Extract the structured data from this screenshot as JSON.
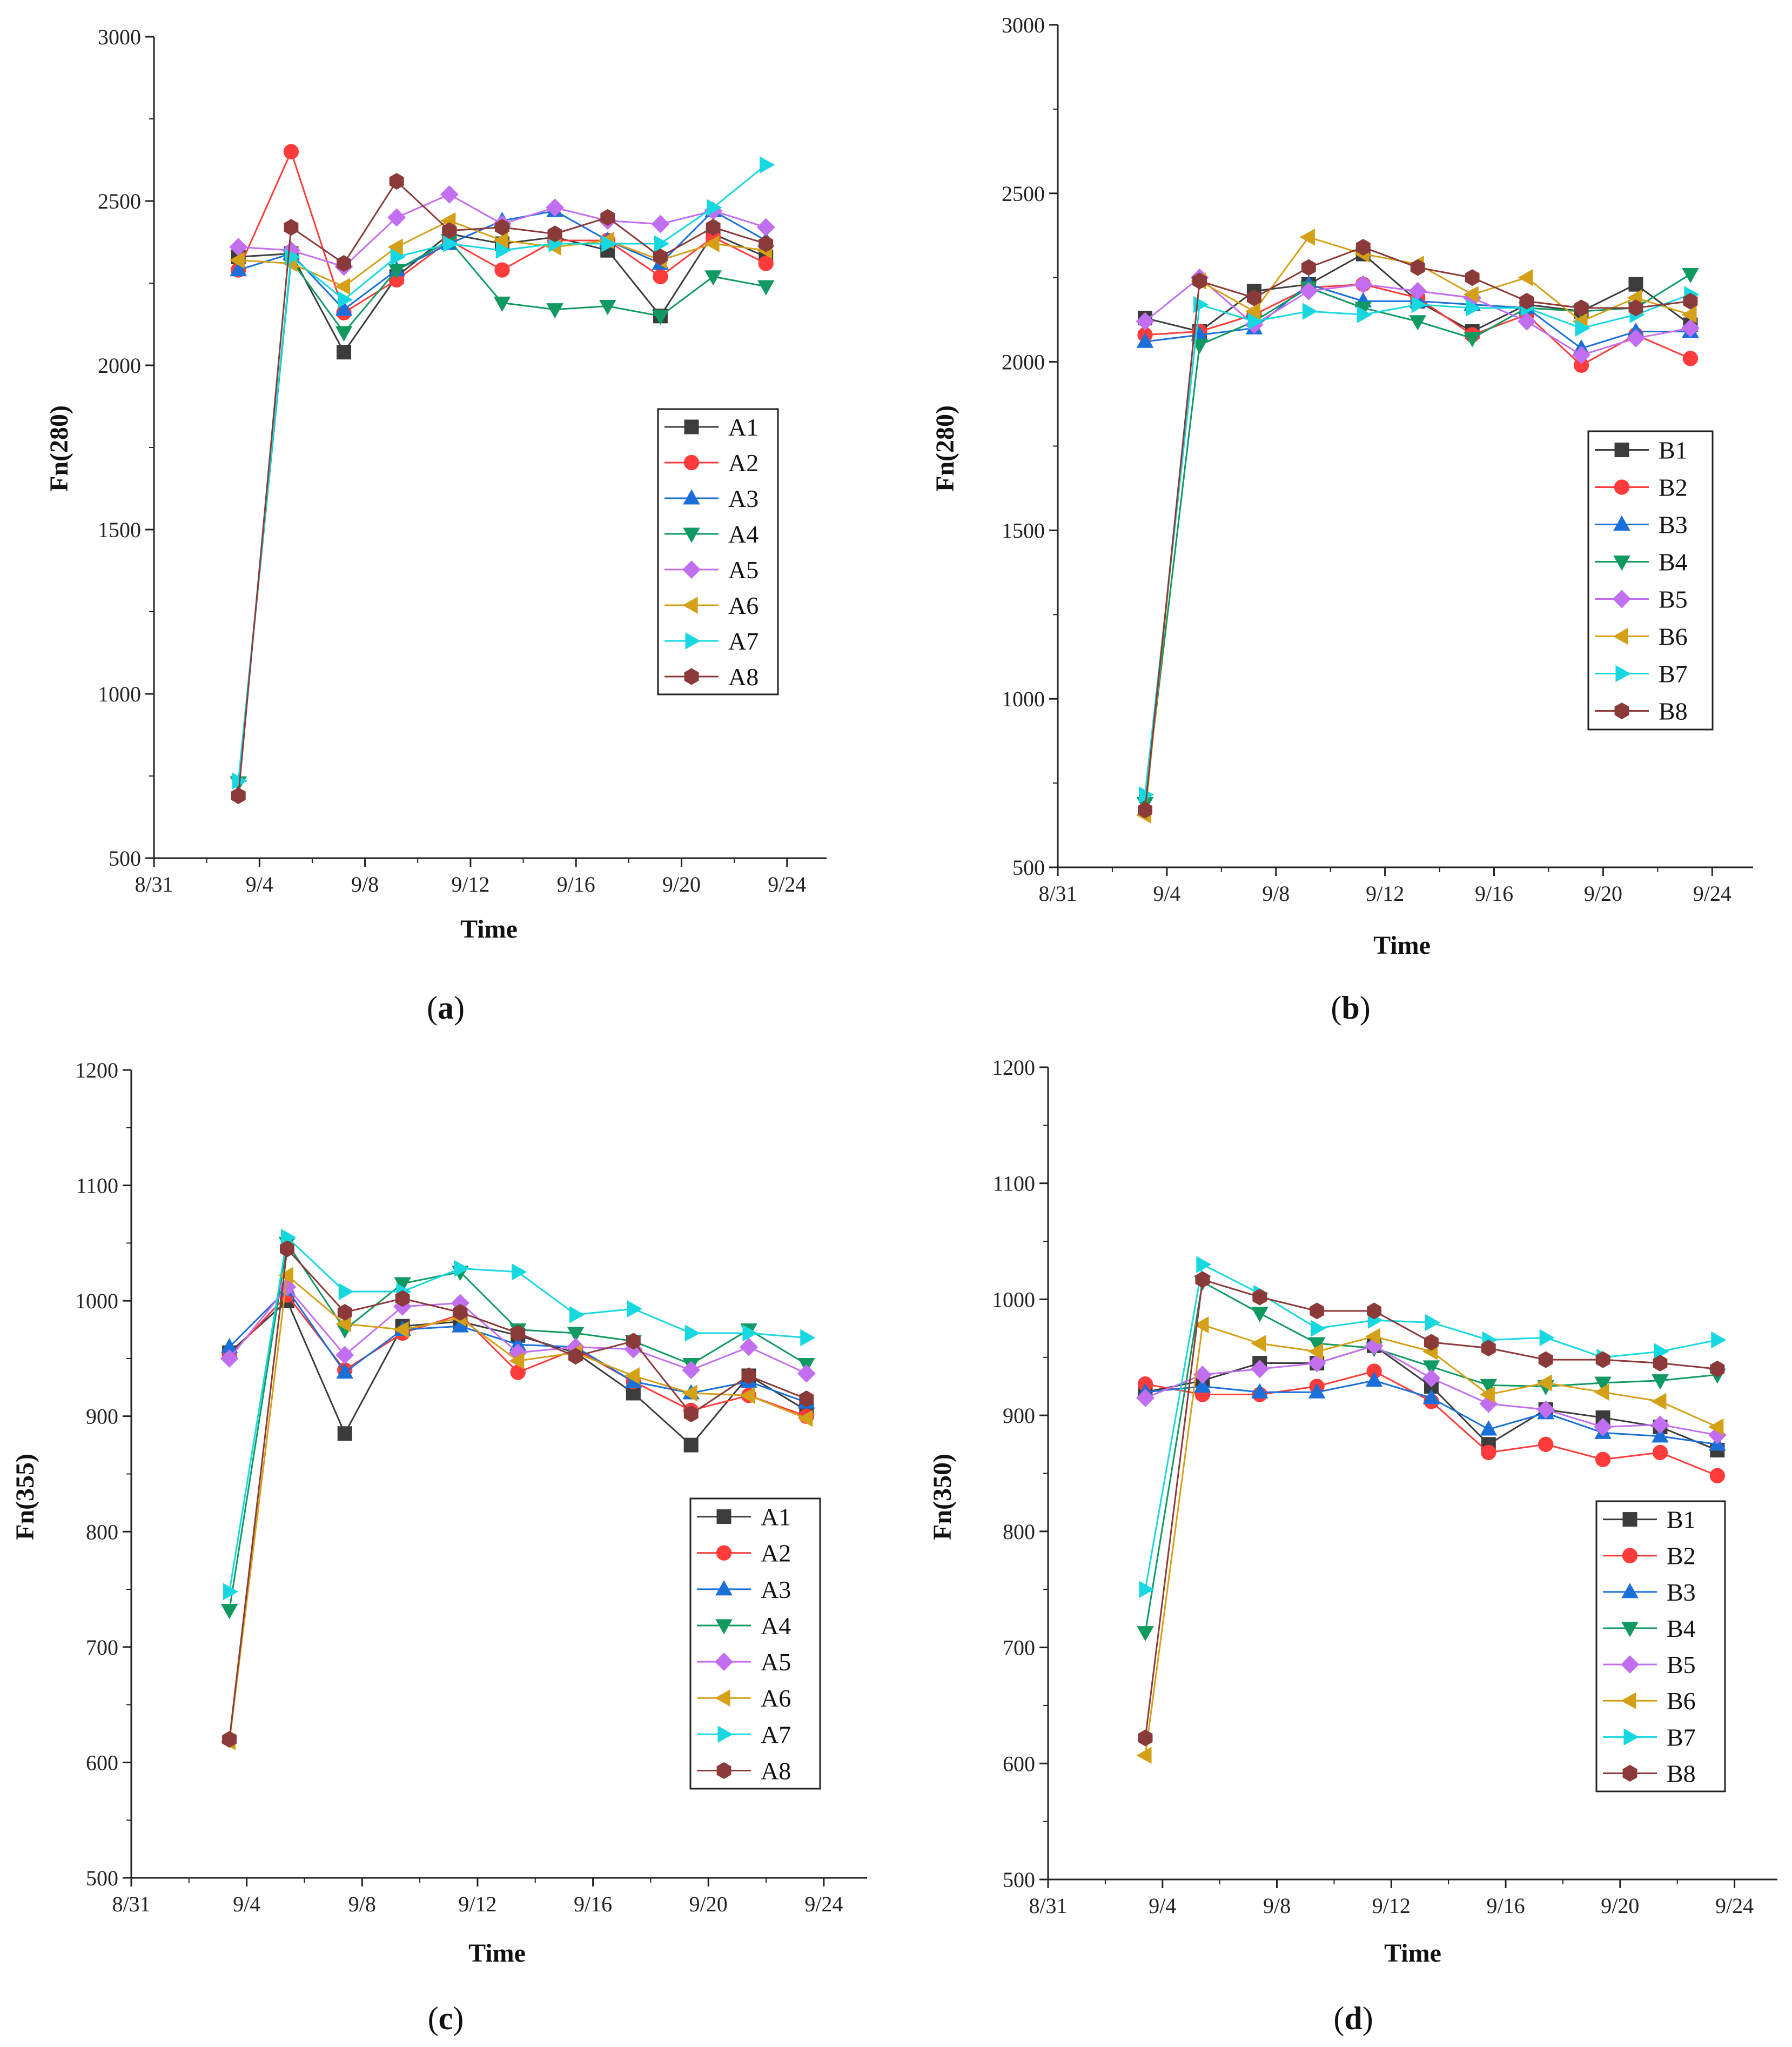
{
  "figure": {
    "panels": [
      {
        "id": "a",
        "label_letter": "a",
        "label_text": "(a)"
      },
      {
        "id": "b",
        "label_letter": "b",
        "label_text": "(b)"
      },
      {
        "id": "c",
        "label_letter": "c",
        "label_text": "(c)"
      },
      {
        "id": "d",
        "label_letter": "d",
        "label_text": "(d)"
      }
    ]
  },
  "chart_data": [
    {
      "id": "a",
      "type": "line",
      "xlabel": "Time",
      "ylabel": "Fn(280)",
      "ylim": [
        500,
        3000
      ],
      "yticks": [
        500,
        1000,
        1500,
        2000,
        2500,
        3000
      ],
      "xlim": [
        0,
        25.5
      ],
      "xtick_values": [
        0,
        4,
        8,
        12,
        16,
        20,
        24
      ],
      "xtick_labels": [
        "8/31",
        "9/4",
        "9/8",
        "9/12",
        "9/16",
        "9/20",
        "9/24"
      ],
      "x": [
        3.2,
        5.2,
        7.2,
        9.2,
        11.2,
        13.2,
        15.2,
        17.2,
        19.2,
        21.2,
        23.2
      ],
      "legend_position": "right",
      "series": [
        {
          "name": "A1",
          "color": "#3c3c3c",
          "marker": "square",
          "values": [
            2330,
            2340,
            2040,
            2270,
            2400,
            2370,
            2390,
            2350,
            2150,
            2400,
            2330
          ]
        },
        {
          "name": "A2",
          "color": "#ff3b3b",
          "marker": "circle",
          "values": [
            2290,
            2650,
            2160,
            2260,
            2380,
            2290,
            2380,
            2380,
            2270,
            2390,
            2310
          ]
        },
        {
          "name": "A3",
          "color": "#1a6fd9",
          "marker": "triangle-up",
          "values": [
            2290,
            2340,
            2170,
            2290,
            2370,
            2440,
            2470,
            2380,
            2310,
            2470,
            2380
          ]
        },
        {
          "name": "A4",
          "color": "#109a62",
          "marker": "triangle-down",
          "values": [
            730,
            2320,
            2100,
            2290,
            2380,
            2190,
            2170,
            2180,
            2150,
            2270,
            2240
          ]
        },
        {
          "name": "A5",
          "color": "#c26ef0",
          "marker": "diamond",
          "values": [
            2360,
            2350,
            2300,
            2450,
            2520,
            2430,
            2480,
            2440,
            2430,
            2470,
            2420
          ]
        },
        {
          "name": "A6",
          "color": "#d4a017",
          "marker": "triangle-left",
          "values": [
            2320,
            2310,
            2240,
            2360,
            2440,
            2380,
            2360,
            2380,
            2320,
            2370,
            2350
          ]
        },
        {
          "name": "A7",
          "color": "#17d8e0",
          "marker": "triangle-right",
          "values": [
            735,
            2330,
            2200,
            2330,
            2370,
            2350,
            2370,
            2370,
            2370,
            2480,
            2610
          ]
        },
        {
          "name": "A8",
          "color": "#8b3a3a",
          "marker": "hexagon",
          "values": [
            690,
            2420,
            2310,
            2560,
            2410,
            2420,
            2400,
            2450,
            2330,
            2420,
            2370
          ]
        }
      ]
    },
    {
      "id": "b",
      "type": "line",
      "xlabel": "Time",
      "ylabel": "Fn(280)",
      "ylim": [
        500,
        3000
      ],
      "yticks": [
        500,
        1000,
        1500,
        2000,
        2500,
        3000
      ],
      "xlim": [
        0,
        25.5
      ],
      "xtick_values": [
        0,
        4,
        8,
        12,
        16,
        20,
        24
      ],
      "xtick_labels": [
        "8/31",
        "9/4",
        "9/8",
        "9/12",
        "9/16",
        "9/20",
        "9/24"
      ],
      "x": [
        3.2,
        5.2,
        7.2,
        9.2,
        11.2,
        13.2,
        15.2,
        17.2,
        19.2,
        21.2,
        23.2
      ],
      "legend_position": "right",
      "series": [
        {
          "name": "B1",
          "color": "#3c3c3c",
          "marker": "square",
          "values": [
            2130,
            2090,
            2210,
            2230,
            2320,
            2180,
            2090,
            2170,
            2150,
            2230,
            2110
          ]
        },
        {
          "name": "B2",
          "color": "#ff3b3b",
          "marker": "circle",
          "values": [
            2080,
            2090,
            2140,
            2220,
            2230,
            2190,
            2080,
            2140,
            1990,
            2080,
            2010
          ]
        },
        {
          "name": "B3",
          "color": "#1a6fd9",
          "marker": "triangle-up",
          "values": [
            2060,
            2080,
            2100,
            2230,
            2180,
            2180,
            2170,
            2160,
            2040,
            2090,
            2090
          ]
        },
        {
          "name": "B4",
          "color": "#109a62",
          "marker": "triangle-down",
          "values": [
            690,
            2050,
            2120,
            2220,
            2160,
            2120,
            2070,
            2160,
            2150,
            2160,
            2260
          ]
        },
        {
          "name": "B5",
          "color": "#c26ef0",
          "marker": "diamond",
          "values": [
            2120,
            2250,
            2110,
            2210,
            2230,
            2210,
            2190,
            2120,
            2020,
            2070,
            2100
          ]
        },
        {
          "name": "B6",
          "color": "#d4a017",
          "marker": "triangle-left",
          "values": [
            655,
            2240,
            2150,
            2370,
            2320,
            2290,
            2200,
            2250,
            2120,
            2190,
            2140
          ]
        },
        {
          "name": "B7",
          "color": "#17d8e0",
          "marker": "triangle-right",
          "values": [
            715,
            2170,
            2120,
            2150,
            2140,
            2170,
            2160,
            2160,
            2100,
            2140,
            2200
          ]
        },
        {
          "name": "B8",
          "color": "#8b3a3a",
          "marker": "hexagon",
          "values": [
            670,
            2240,
            2190,
            2280,
            2340,
            2280,
            2250,
            2180,
            2160,
            2160,
            2180
          ]
        }
      ]
    },
    {
      "id": "c",
      "type": "line",
      "xlabel": "Time",
      "ylabel": "Fn(355)",
      "ylim": [
        500,
        1200
      ],
      "yticks": [
        500,
        600,
        700,
        800,
        900,
        1000,
        1100,
        1200
      ],
      "xlim": [
        0,
        25.5
      ],
      "xtick_values": [
        0,
        4,
        8,
        12,
        16,
        20,
        24
      ],
      "xtick_labels": [
        "8/31",
        "9/4",
        "9/8",
        "9/12",
        "9/16",
        "9/20",
        "9/24"
      ],
      "x": [
        3.4,
        5.4,
        7.4,
        9.4,
        11.4,
        13.4,
        15.4,
        17.4,
        19.4,
        21.4,
        23.4
      ],
      "legend_position": "lower-right",
      "series": [
        {
          "name": "A1",
          "color": "#3c3c3c",
          "marker": "square",
          "values": [
            955,
            1000,
            885,
            978,
            982,
            970,
            955,
            920,
            875,
            935,
            905
          ]
        },
        {
          "name": "A2",
          "color": "#ff3b3b",
          "marker": "circle",
          "values": [
            952,
            1005,
            940,
            972,
            988,
            938,
            958,
            930,
            905,
            918,
            900
          ]
        },
        {
          "name": "A3",
          "color": "#1a6fd9",
          "marker": "triangle-up",
          "values": [
            960,
            1010,
            938,
            975,
            978,
            962,
            960,
            930,
            920,
            930,
            912
          ]
        },
        {
          "name": "A4",
          "color": "#109a62",
          "marker": "triangle-down",
          "values": [
            732,
            1050,
            975,
            1015,
            1025,
            975,
            972,
            965,
            945,
            975,
            945
          ]
        },
        {
          "name": "A5",
          "color": "#c26ef0",
          "marker": "diamond",
          "values": [
            950,
            1012,
            953,
            995,
            998,
            955,
            960,
            958,
            940,
            960,
            937
          ]
        },
        {
          "name": "A6",
          "color": "#d4a017",
          "marker": "triangle-left",
          "values": [
            618,
            1022,
            980,
            975,
            985,
            948,
            955,
            935,
            920,
            918,
            898
          ]
        },
        {
          "name": "A7",
          "color": "#17d8e0",
          "marker": "triangle-right",
          "values": [
            748,
            1055,
            1008,
            1008,
            1028,
            1025,
            988,
            993,
            972,
            972,
            968
          ]
        },
        {
          "name": "A8",
          "color": "#8b3a3a",
          "marker": "hexagon",
          "values": [
            620,
            1045,
            990,
            1002,
            990,
            972,
            952,
            965,
            902,
            935,
            915
          ]
        }
      ]
    },
    {
      "id": "d",
      "type": "line",
      "xlabel": "Time",
      "ylabel": "Fn(350)",
      "ylim": [
        500,
        1200
      ],
      "yticks": [
        500,
        600,
        700,
        800,
        900,
        1000,
        1100,
        1200
      ],
      "xlim": [
        0,
        25.5
      ],
      "xtick_values": [
        0,
        4,
        8,
        12,
        16,
        20,
        24
      ],
      "xtick_labels": [
        "8/31",
        "9/4",
        "9/8",
        "9/12",
        "9/16",
        "9/20",
        "9/24"
      ],
      "x": [
        3.4,
        5.4,
        7.4,
        9.4,
        11.4,
        13.4,
        15.4,
        17.4,
        19.4,
        21.4,
        23.4
      ],
      "legend_position": "lower-right",
      "series": [
        {
          "name": "B1",
          "color": "#3c3c3c",
          "marker": "square",
          "values": [
            920,
            930,
            945,
            945,
            960,
            925,
            875,
            905,
            898,
            890,
            870
          ]
        },
        {
          "name": "B2",
          "color": "#ff3b3b",
          "marker": "circle",
          "values": [
            927,
            918,
            918,
            925,
            938,
            912,
            868,
            875,
            862,
            868,
            848
          ]
        },
        {
          "name": "B3",
          "color": "#1a6fd9",
          "marker": "triangle-up",
          "values": [
            920,
            925,
            920,
            920,
            930,
            915,
            888,
            902,
            885,
            882,
            875
          ]
        },
        {
          "name": "B4",
          "color": "#109a62",
          "marker": "triangle-down",
          "values": [
            713,
            1015,
            988,
            962,
            958,
            942,
            926,
            925,
            928,
            930,
            935
          ]
        },
        {
          "name": "B5",
          "color": "#c26ef0",
          "marker": "diamond",
          "values": [
            915,
            935,
            940,
            945,
            960,
            932,
            910,
            905,
            890,
            892,
            883
          ]
        },
        {
          "name": "B6",
          "color": "#d4a017",
          "marker": "triangle-left",
          "values": [
            607,
            978,
            962,
            955,
            968,
            955,
            918,
            928,
            920,
            912,
            890
          ]
        },
        {
          "name": "B7",
          "color": "#17d8e0",
          "marker": "triangle-right",
          "values": [
            750,
            1030,
            1005,
            975,
            982,
            980,
            965,
            967,
            950,
            955,
            965
          ]
        },
        {
          "name": "B8",
          "color": "#8b3a3a",
          "marker": "hexagon",
          "values": [
            622,
            1017,
            1002,
            990,
            990,
            963,
            958,
            948,
            948,
            945,
            940
          ]
        }
      ]
    }
  ]
}
